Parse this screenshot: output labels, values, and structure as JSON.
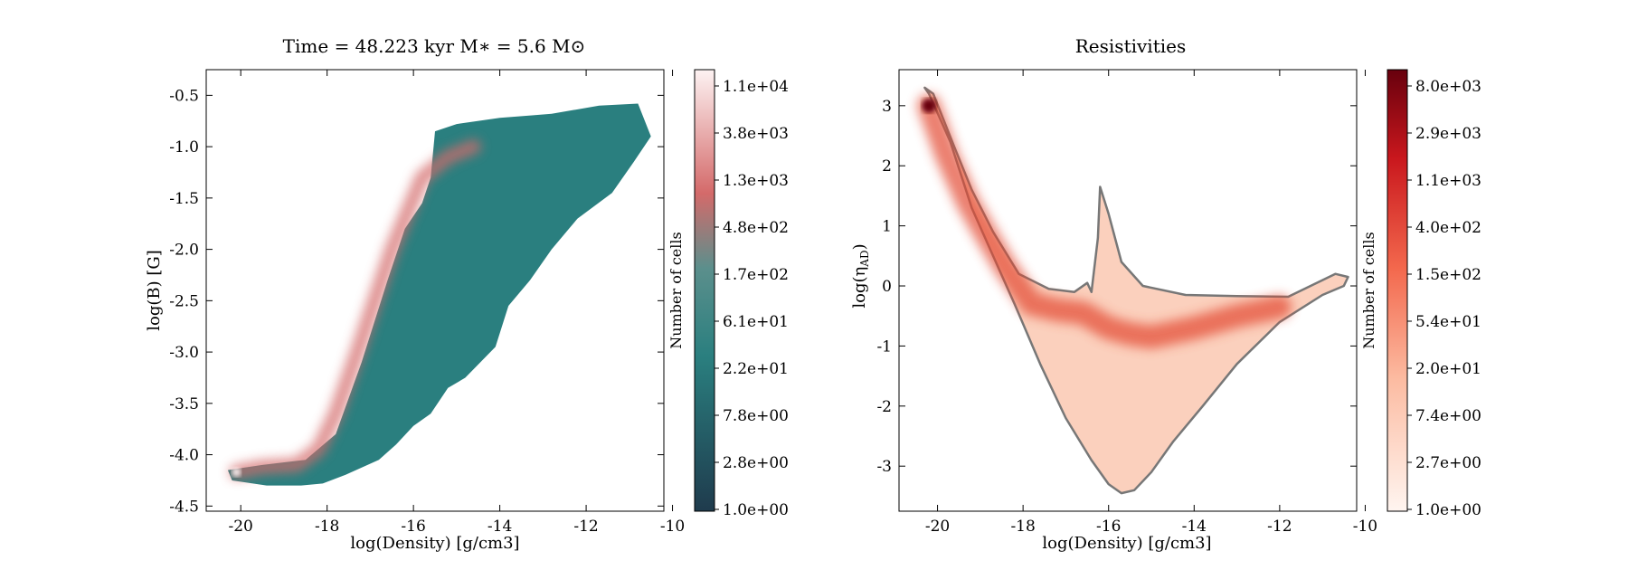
{
  "chart_data": [
    {
      "type": "heatmap",
      "title": "Time = 48.223 kyr    M$_*$ = 5.6 M$_\\odot$",
      "title_text": "Time = 48.223 kyr    M∗ = 5.6 M⊙",
      "xlabel": "log(Density) [g/cm3]",
      "ylabel": "log(B) [G]",
      "xlim": [
        -20.8,
        -10.2
      ],
      "ylim": [
        -4.55,
        -0.25
      ],
      "x_ticks": [
        -20,
        -18,
        -16,
        -14,
        -12,
        -10
      ],
      "x_tick_labels": [
        "-20",
        "-18",
        "-16",
        "-14",
        "-12",
        "-10"
      ],
      "y_ticks": [
        -0.5,
        -1.0,
        -1.5,
        -2.0,
        -2.5,
        -3.0,
        -3.5,
        -4.0,
        -4.5
      ],
      "y_tick_labels": [
        "-0.5",
        "-1.0",
        "-1.5",
        "-2.0",
        "-2.5",
        "-3.0",
        "-3.5",
        "-4.0",
        "-4.5"
      ],
      "grid": false,
      "colormap": [
        "#1f3b4d",
        "#2a7f7f",
        "#d46a6a",
        "#fdf3f3"
      ],
      "colorbar": {
        "label": "Number of cells",
        "tick_labels": [
          "1.0e+00",
          "2.8e+00",
          "7.8e+00",
          "2.2e+01",
          "6.1e+01",
          "1.7e+02",
          "4.8e+02",
          "1.3e+03",
          "3.8e+03",
          "1.1e+04"
        ]
      },
      "region_outline": {
        "x": [
          -20.3,
          -19.5,
          -18.5,
          -17.8,
          -17.2,
          -16.6,
          -16.2,
          -15.8,
          -15.6,
          -15.5,
          -15.0,
          -14.0,
          -12.8,
          -11.7,
          -10.8,
          -10.5,
          -10.9,
          -11.4,
          -12.2,
          -12.8,
          -13.3,
          -13.8,
          -14.1,
          -14.8,
          -15.2,
          -15.6,
          -16.0,
          -16.4,
          -16.8,
          -17.6,
          -18.1,
          -18.6,
          -19.4,
          -20.2
        ],
        "y": [
          -4.15,
          -4.1,
          -4.05,
          -3.8,
          -3.1,
          -2.3,
          -1.8,
          -1.55,
          -1.3,
          -0.85,
          -0.78,
          -0.72,
          -0.68,
          -0.6,
          -0.58,
          -0.9,
          -1.15,
          -1.45,
          -1.7,
          -2.0,
          -2.3,
          -2.55,
          -2.95,
          -3.25,
          -3.35,
          -3.6,
          -3.72,
          -3.9,
          -4.05,
          -4.2,
          -4.28,
          -4.3,
          -4.3,
          -4.25
        ]
      },
      "ridge": {
        "x": [
          -20.1,
          -19.5,
          -18.7,
          -18.2,
          -17.8,
          -17.3,
          -16.9,
          -16.5,
          -16.2,
          -15.8,
          -15.2,
          -14.6
        ],
        "y": [
          -4.17,
          -4.12,
          -4.1,
          -3.95,
          -3.6,
          -3.0,
          -2.5,
          -2.0,
          -1.7,
          -1.3,
          -1.1,
          -1.0
        ]
      },
      "peak_density": {
        "x": -20.1,
        "y": -4.17
      }
    },
    {
      "type": "heatmap",
      "title": "Resistivities",
      "xlabel": "log(Density) [g/cm3]",
      "ylabel": "log(η$_{AD}$)",
      "ylabel_text": "log(η",
      "ylabel_sub": "AD",
      "xlim": [
        -20.9,
        -10.2
      ],
      "ylim": [
        -3.75,
        3.6
      ],
      "x_ticks": [
        -20,
        -18,
        -16,
        -14,
        -12,
        -10
      ],
      "x_tick_labels": [
        "-20",
        "-18",
        "-16",
        "-14",
        "-12",
        "-10"
      ],
      "y_ticks": [
        3,
        2,
        1,
        0,
        -1,
        -2,
        -3
      ],
      "y_tick_labels": [
        "3",
        "2",
        "1",
        "0",
        "-1",
        "-2",
        "-3"
      ],
      "grid": false,
      "colormap": [
        "#fff5f0",
        "#f9a183",
        "#e2392b",
        "#67000d"
      ],
      "outline_color": "#777777",
      "colorbar": {
        "label": "Number of cells",
        "tick_labels": [
          "1.0e+00",
          "2.7e+00",
          "7.4e+00",
          "2.0e+01",
          "5.4e+01",
          "1.5e+02",
          "4.0e+02",
          "1.1e+03",
          "2.9e+03",
          "8.0e+03"
        ]
      },
      "region_outline": {
        "x": [
          -20.3,
          -20.1,
          -19.6,
          -19.2,
          -18.7,
          -18.1,
          -17.4,
          -16.8,
          -16.5,
          -16.4,
          -16.25,
          -16.2,
          -16.0,
          -15.7,
          -15.2,
          -14.2,
          -13.0,
          -11.8,
          -10.7,
          -10.4,
          -10.5,
          -11.0,
          -12.0,
          -13.0,
          -13.8,
          -14.5,
          -15.0,
          -15.4,
          -15.7,
          -16.0,
          -16.4,
          -17.0,
          -17.6,
          -18.2,
          -18.7,
          -19.2,
          -19.7,
          -20.2
        ],
        "y": [
          3.3,
          3.2,
          2.3,
          1.6,
          0.9,
          0.2,
          -0.05,
          -0.1,
          0.05,
          -0.1,
          0.8,
          1.65,
          1.2,
          0.4,
          0.0,
          -0.15,
          -0.17,
          -0.18,
          0.2,
          0.15,
          0.0,
          -0.15,
          -0.6,
          -1.3,
          -2.0,
          -2.6,
          -3.1,
          -3.4,
          -3.45,
          -3.3,
          -2.9,
          -2.2,
          -1.3,
          -0.3,
          0.5,
          1.3,
          2.4,
          3.2
        ]
      },
      "ridge": {
        "x": [
          -20.2,
          -19.8,
          -19.3,
          -18.9,
          -18.4,
          -17.8,
          -17.2,
          -16.6,
          -16.0,
          -15.5,
          -15.0,
          -14.0,
          -13.0,
          -12.0
        ],
        "y": [
          3.0,
          2.2,
          1.4,
          0.9,
          0.3,
          -0.3,
          -0.4,
          -0.45,
          -0.7,
          -0.8,
          -0.85,
          -0.7,
          -0.5,
          -0.35
        ]
      },
      "peak_density": {
        "x": -20.2,
        "y": 3.0
      }
    }
  ]
}
